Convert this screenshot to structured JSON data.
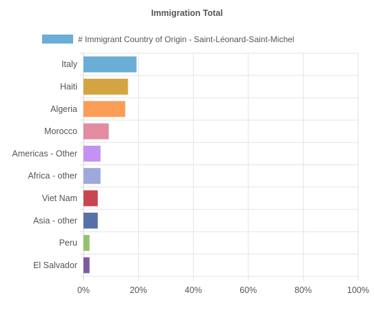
{
  "chart_data": {
    "type": "bar",
    "orientation": "horizontal",
    "title": "Immigration Total",
    "categories": [
      "Italy",
      "Haiti",
      "Algeria",
      "Morocco",
      "Americas - Other",
      "Africa - other",
      "Viet Nam",
      "Asia - other",
      "Peru",
      "El Salvador"
    ],
    "series": [
      {
        "name": "# Immigrant Country of Origin - Saint-Léonard-Saint-Michel",
        "values": [
          19.3,
          16.2,
          15.2,
          9.2,
          6.2,
          6.2,
          5.2,
          5.2,
          2.2,
          2.2
        ],
        "legend_color": "#6aaed6"
      }
    ],
    "bar_colors": [
      "#6aaed6",
      "#d3a441",
      "#f99d57",
      "#e38ba1",
      "#c591f2",
      "#9ea8dc",
      "#c94650",
      "#5870a8",
      "#94c16f",
      "#7f59a6"
    ],
    "xlim": [
      0,
      100
    ],
    "x_ticks": [
      "0%",
      "20%",
      "40%",
      "60%",
      "80%",
      "100%"
    ],
    "x_tick_values": [
      0,
      20,
      40,
      60,
      80,
      100
    ],
    "grid": true,
    "legend_position": "top"
  }
}
